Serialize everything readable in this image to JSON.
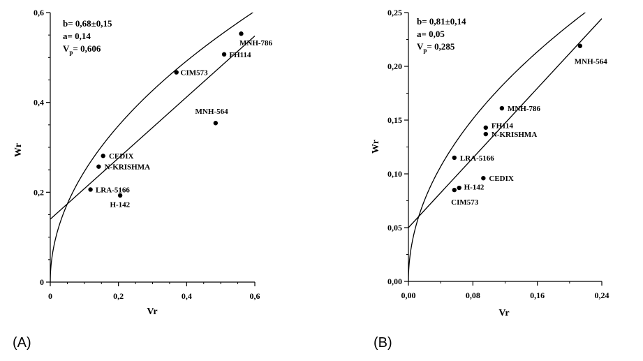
{
  "chart_data": [
    {
      "type": "scatter",
      "panel_label": "(A)",
      "xlabel": "Vr",
      "ylabel": "Wr",
      "xlim": [
        0,
        0.6
      ],
      "ylim": [
        0,
        0.6
      ],
      "x_ticks": [
        0,
        0.2,
        0.4,
        0.6
      ],
      "x_tick_labels": [
        "0",
        "0,2",
        "0,4",
        "0,6"
      ],
      "y_ticks": [
        0,
        0.2,
        0.4,
        0.6
      ],
      "y_tick_labels": [
        "0",
        "0,2",
        "0,4",
        "0,6"
      ],
      "annotations": [
        {
          "pre": "b= 0,68±0,15"
        },
        {
          "pre": "a= 0,14"
        },
        {
          "pre": "V",
          "sub": "p",
          "post": "= 0,606"
        }
      ],
      "regression": {
        "a": 0.14,
        "b": 0.68
      },
      "parabola_vp": 0.606,
      "points": [
        {
          "label": "MNH-786",
          "x": 0.56,
          "y": 0.553,
          "lx": -0.005,
          "ly": -0.02
        },
        {
          "label": "FH114",
          "x": 0.51,
          "y": 0.507,
          "lx": 0.015,
          "ly": 0
        },
        {
          "label": "CIM573",
          "x": 0.37,
          "y": 0.467,
          "lx": 0.012,
          "ly": 0
        },
        {
          "label": "MNH-564",
          "x": 0.485,
          "y": 0.354,
          "lx": -0.06,
          "ly": 0.027
        },
        {
          "label": "CEDIX",
          "x": 0.155,
          "y": 0.281,
          "lx": 0.017,
          "ly": 0
        },
        {
          "label": "N-KRISHMA",
          "x": 0.142,
          "y": 0.257,
          "lx": 0.017,
          "ly": 0
        },
        {
          "label": "LRA-5166",
          "x": 0.118,
          "y": 0.206,
          "lx": 0.015,
          "ly": 0
        },
        {
          "label": "H-142",
          "x": 0.205,
          "y": 0.193,
          "lx": -0.03,
          "ly": -0.02
        }
      ]
    },
    {
      "type": "scatter",
      "panel_label": "(B)",
      "xlabel": "Vr",
      "ylabel": "Wr",
      "xlim": [
        0,
        0.24
      ],
      "ylim": [
        0,
        0.25
      ],
      "x_ticks": [
        0,
        0.08,
        0.16,
        0.24
      ],
      "x_tick_labels": [
        "0,00",
        "0,08",
        "0,16",
        "0,24"
      ],
      "y_ticks": [
        0,
        0.05,
        0.1,
        0.15,
        0.2,
        0.25
      ],
      "y_tick_labels": [
        "0,00",
        "0,05",
        "0,10",
        "0,15",
        "0,20",
        "0,25"
      ],
      "annotations": [
        {
          "pre": "b= 0,81±0,14"
        },
        {
          "pre": "a= 0,05"
        },
        {
          "pre": "V",
          "sub": "p",
          "post": "= 0,285"
        }
      ],
      "regression": {
        "a": 0.05,
        "b": 0.81
      },
      "parabola_vp": 0.285,
      "points": [
        {
          "label": "MNH-564",
          "x": 0.213,
          "y": 0.219,
          "lx": -0.007,
          "ly": -0.014
        },
        {
          "label": "MNH-786",
          "x": 0.116,
          "y": 0.161,
          "lx": 0.007,
          "ly": 0
        },
        {
          "label": "FH114",
          "x": 0.096,
          "y": 0.143,
          "lx": 0.007,
          "ly": 0.002
        },
        {
          "label": "N-KRISHMA",
          "x": 0.096,
          "y": 0.137,
          "lx": 0.007,
          "ly": 0
        },
        {
          "label": "LRA-5166",
          "x": 0.057,
          "y": 0.115,
          "lx": 0.007,
          "ly": 0
        },
        {
          "label": "CEDIX",
          "x": 0.093,
          "y": 0.096,
          "lx": 0.007,
          "ly": 0
        },
        {
          "label": "H-142",
          "x": 0.063,
          "y": 0.087,
          "lx": 0.006,
          "ly": 0.001
        },
        {
          "label": "CIM573",
          "x": 0.057,
          "y": 0.085,
          "lx": -0.004,
          "ly": -0.011
        }
      ]
    }
  ]
}
